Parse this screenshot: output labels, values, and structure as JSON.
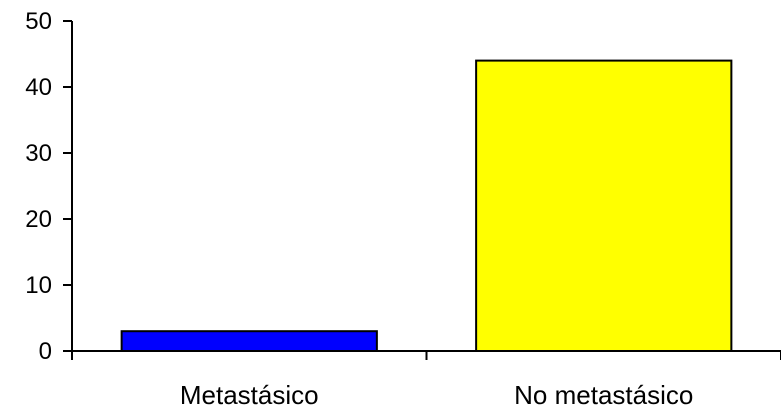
{
  "chart_data": {
    "type": "bar",
    "categories": [
      "Metastásico",
      "No metastásico"
    ],
    "values": [
      3,
      44
    ],
    "bar_colors": [
      "#0000ff",
      "#ffff00"
    ],
    "bar_outline_color": "#000000",
    "ylim": [
      0,
      50
    ],
    "yticks": [
      0,
      10,
      20,
      30,
      40,
      50
    ],
    "ytick_labels": [
      "0",
      "10",
      "20",
      "30",
      "40",
      "50"
    ],
    "grid": false,
    "legend": "none"
  }
}
